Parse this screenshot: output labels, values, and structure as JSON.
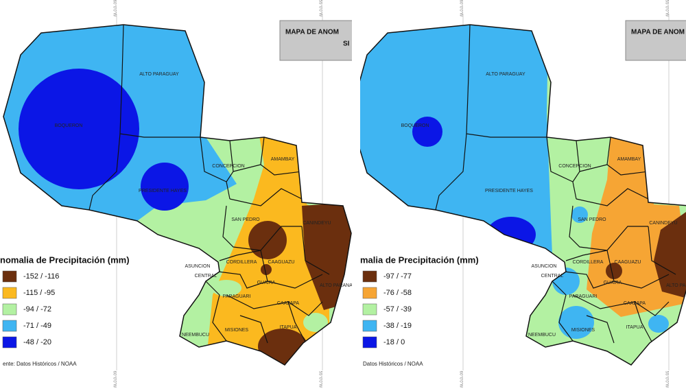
{
  "panels": [
    {
      "title": "MAPA DE ANOM",
      "title_line2": "SI",
      "coords_top": [
        "60°0'0\"W",
        "55°0'0\"W"
      ],
      "coords_bottom": [
        "60°0'0\"W",
        "55°0'0\"W"
      ],
      "departments": [
        "ALTO PARAGUAY",
        "BOQUERON",
        "PRESIDENTE HAYES",
        "CONCEPCION",
        "AMAMBAY",
        "SAN PEDRO",
        "CANINDEYU",
        "CORDILLERA",
        "CAAGUAZU",
        "ASUNCION",
        "CENTRAL",
        "GUAIRA",
        "ALTO PARANA",
        "PARAGUARI",
        "CAAZAPA",
        "NEEMBUCU",
        "MISIONES",
        "ITAPUA"
      ],
      "legend": {
        "title": "nomalia de Precipitación (mm)",
        "items": [
          {
            "label": "-152 / -116",
            "color": "#6b2f0e"
          },
          {
            "label": "-115 / -95",
            "color": "#fbb91f"
          },
          {
            "label": "-94 / -72",
            "color": "#b3f1a2"
          },
          {
            "label": "-71 / -49",
            "color": "#3fb5f2"
          },
          {
            "label": "-48 / -20",
            "color": "#0b16e6"
          }
        ]
      },
      "source": "ente: Datos Históricos / NOAA"
    },
    {
      "title": "MAPA DE ANOM",
      "coords_top": [
        "60°0'0\"W",
        "55°0'0\"W"
      ],
      "coords_bottom": [
        "60°0'0\"W",
        "55°0'0\"W"
      ],
      "departments": [
        "ALTO PARAGUAY",
        "BOQUERON",
        "PRESIDENTE HAYES",
        "CONCEPCION",
        "AMAMBAY",
        "SAN PEDRO",
        "CANINDEYU",
        "CORDILLERA",
        "CAAGUAZU",
        "ASUNCION",
        "CENTRAL",
        "GUAIRA",
        "ALTO PARANA",
        "PARAGUARI",
        "CAAZAPA",
        "NEEMBUCU",
        "MISIONES",
        "ITAPUA"
      ],
      "legend": {
        "title": "malia de Precipitación (mm)",
        "items": [
          {
            "label": "-97 / -77",
            "color": "#6b2f0e"
          },
          {
            "label": "-76 / -58",
            "color": "#f6a534"
          },
          {
            "label": "-57 / -39",
            "color": "#b3f1a2"
          },
          {
            "label": "-38 / -19",
            "color": "#3fb5f2"
          },
          {
            "label": "-18 /  0",
            "color": "#0b16e6"
          }
        ]
      },
      "source": "Datos Históricos / NOAA"
    }
  ]
}
